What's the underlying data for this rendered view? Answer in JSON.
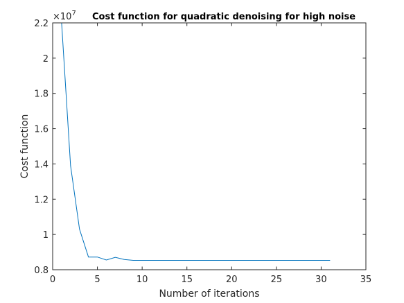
{
  "chart_data": {
    "type": "line",
    "title": "Cost function for quadratic denoising for high noise",
    "xlabel": "Number of iterations",
    "ylabel": "Cost function",
    "y_multiplier": "×10",
    "y_exponent": "7",
    "xlim": [
      0,
      35
    ],
    "ylim": [
      0.8,
      2.2
    ],
    "x_ticks": [
      0,
      5,
      10,
      15,
      20,
      25,
      30,
      35
    ],
    "y_ticks": [
      0.8,
      1,
      1.2,
      1.4,
      1.6,
      1.8,
      2,
      2.2
    ],
    "x_tick_labels": [
      "0",
      "5",
      "10",
      "15",
      "20",
      "25",
      "30",
      "35"
    ],
    "y_tick_labels": [
      "0.8",
      "1",
      "1.2",
      "1.4",
      "1.6",
      "1.8",
      "2",
      "2.2"
    ],
    "grid": false,
    "series": [
      {
        "color": "#0072bd",
        "x": [
          1,
          2,
          3,
          4,
          5,
          6,
          7,
          8,
          9,
          10,
          11,
          12,
          13,
          14,
          15,
          16,
          17,
          18,
          19,
          20,
          21,
          22,
          23,
          24,
          25,
          26,
          27,
          28,
          29,
          30,
          31
        ],
        "values": [
          2.2,
          1.39,
          1.03,
          0.872,
          0.872,
          0.855,
          0.87,
          0.858,
          0.853,
          0.853,
          0.853,
          0.853,
          0.853,
          0.853,
          0.853,
          0.853,
          0.853,
          0.853,
          0.853,
          0.853,
          0.853,
          0.853,
          0.853,
          0.853,
          0.853,
          0.853,
          0.853,
          0.853,
          0.853,
          0.853,
          0.853
        ]
      }
    ]
  }
}
